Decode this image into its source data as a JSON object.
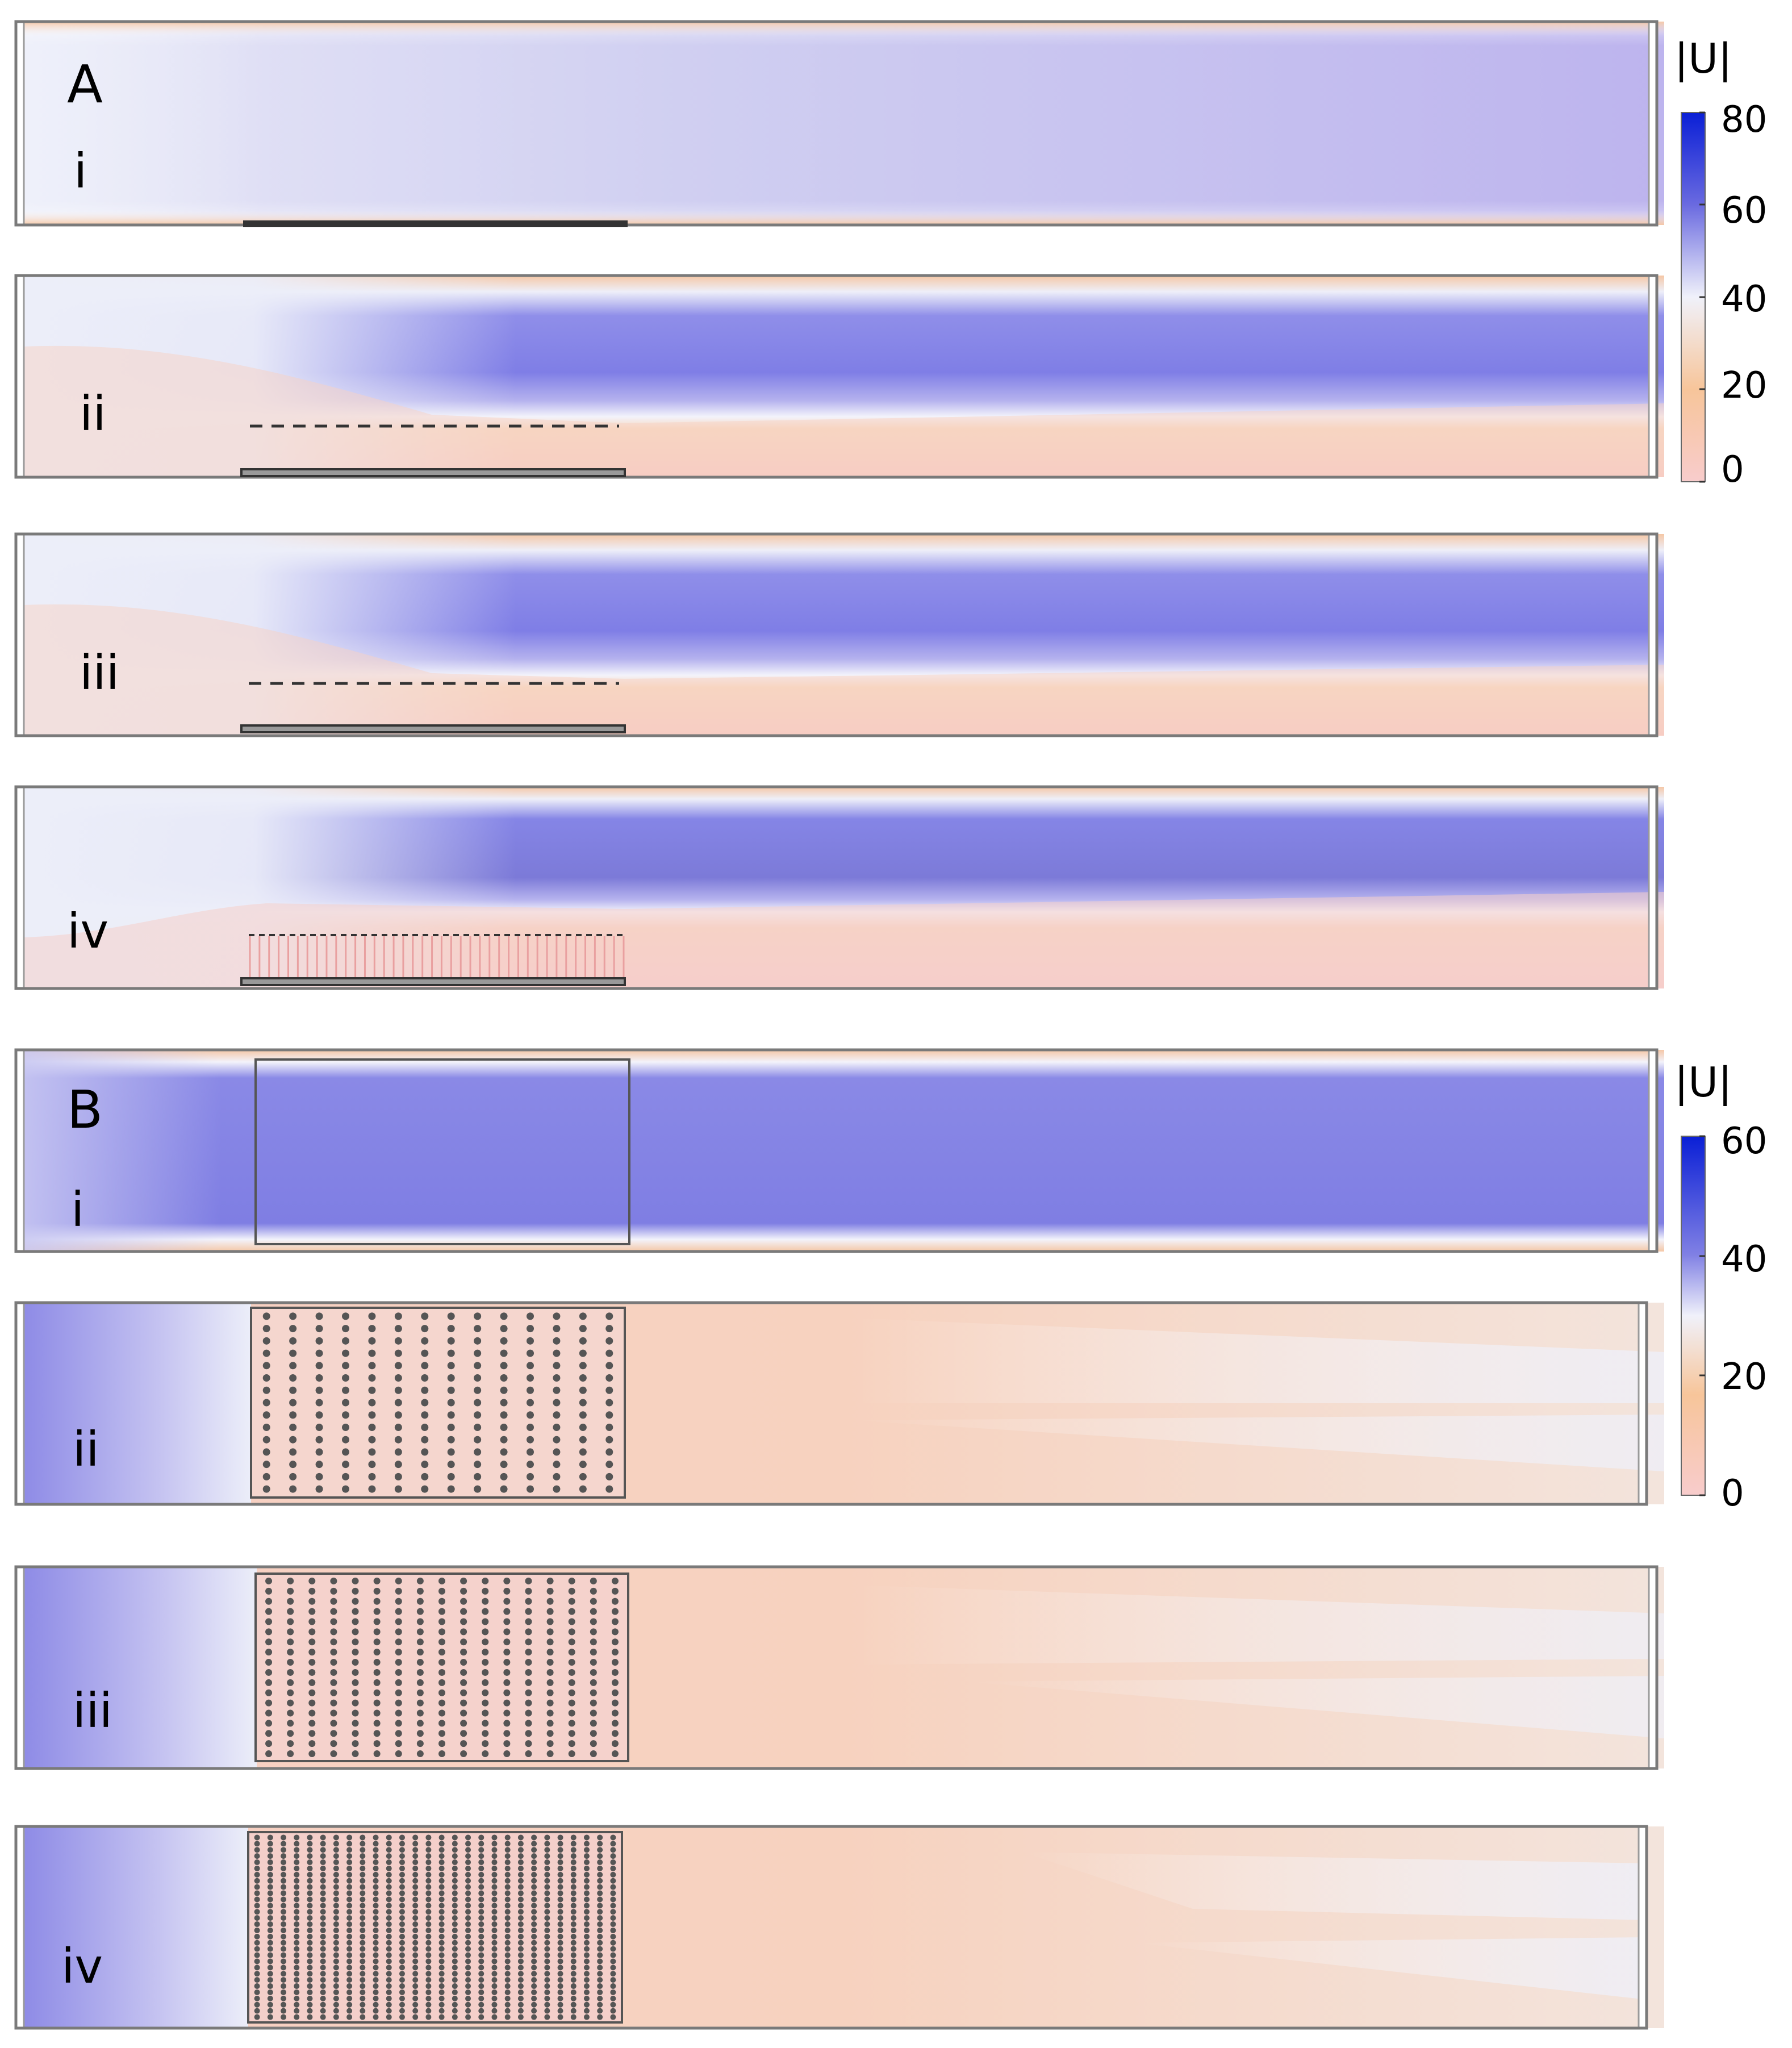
{
  "figure": {
    "group_a": {
      "letter": "A",
      "colorbar": {
        "title": "|U|",
        "ticks": [
          "80",
          "60",
          "40",
          "20",
          "0"
        ],
        "max": 80,
        "min": 0
      },
      "panels": [
        {
          "numeral": "i",
          "structure": "bottom solid plate"
        },
        {
          "numeral": "ii",
          "structure": "dashed porous layer above plate"
        },
        {
          "numeral": "iii",
          "structure": "dashed porous layer above plate"
        },
        {
          "numeral": "iv",
          "structure": "vertical fibre canopy"
        }
      ]
    },
    "group_b": {
      "letter": "B",
      "colorbar": {
        "title": "|U|",
        "ticks": [
          "60",
          "40",
          "20",
          "0"
        ],
        "max": 60,
        "min": 0
      },
      "panels": [
        {
          "numeral": "i",
          "structure": "empty rectangular region",
          "pillar_cols": 0,
          "pillar_rows": 0
        },
        {
          "numeral": "ii",
          "structure": "sparse pillar array",
          "pillar_cols": 14,
          "pillar_rows": 15
        },
        {
          "numeral": "iii",
          "structure": "medium pillar array",
          "pillar_cols": 17,
          "pillar_rows": 18
        },
        {
          "numeral": "iv",
          "structure": "dense pillar array",
          "pillar_cols": 28,
          "pillar_rows": 30
        }
      ]
    },
    "colors": {
      "high": "#0a1fd6",
      "mid_high": "#7a7ae6",
      "mid": "#eef0fa",
      "low_mid": "#f6d2b2",
      "low": "#f8cccc",
      "frame": "#7a7a7a",
      "structure": "#333333"
    }
  }
}
